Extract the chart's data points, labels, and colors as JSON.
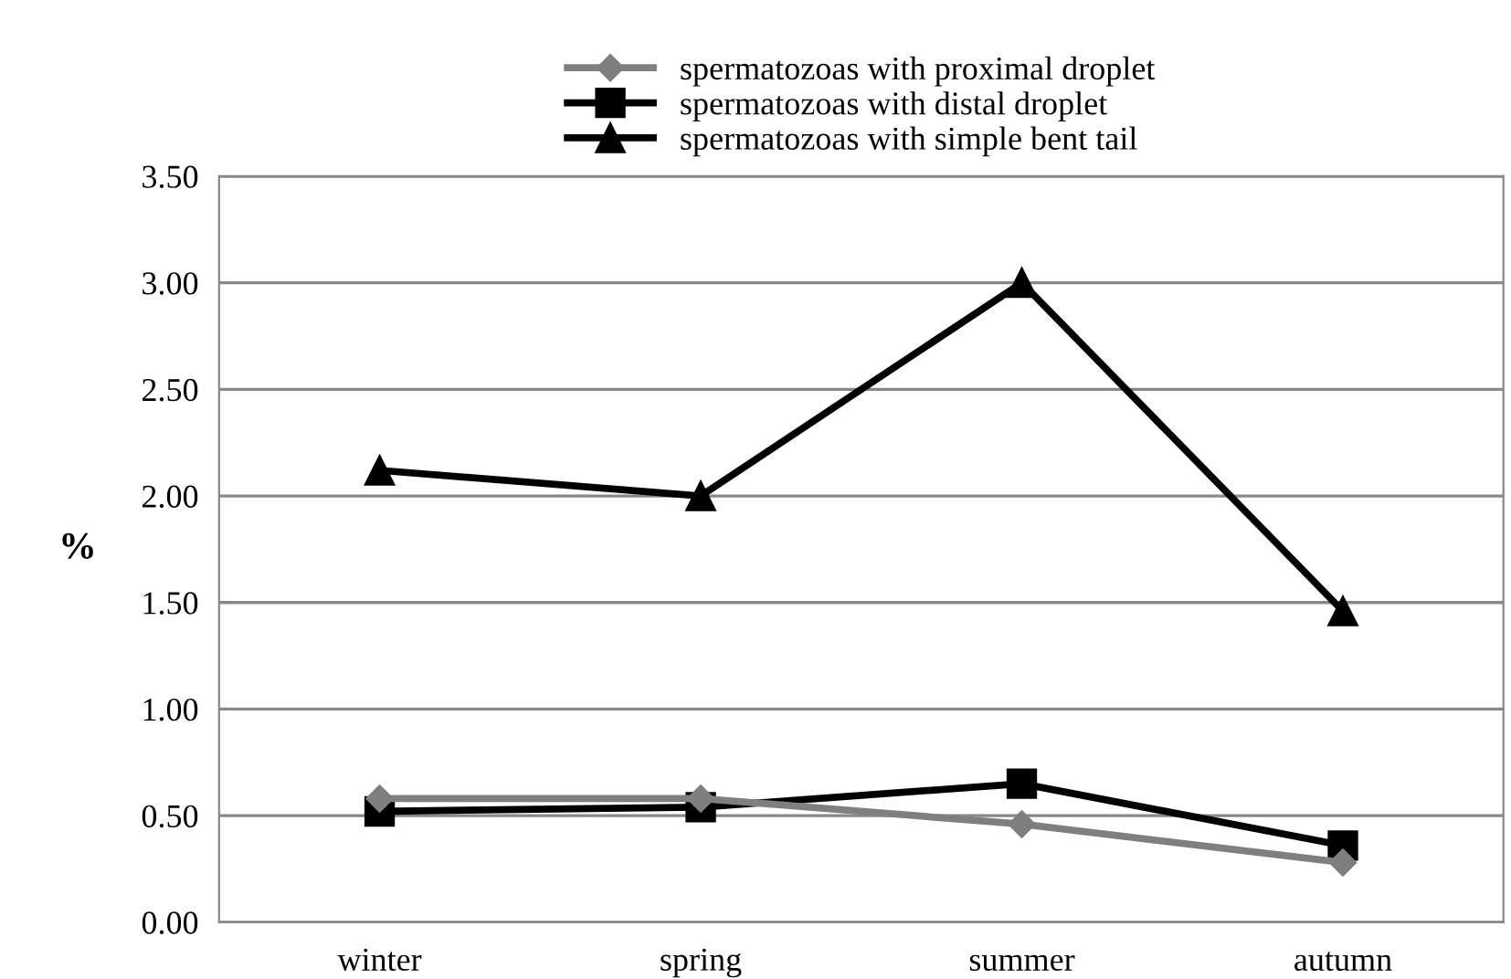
{
  "chart_data": {
    "type": "line",
    "ylabel": "%",
    "categories": [
      "winter",
      "spring",
      "summer",
      "autumn"
    ],
    "series": [
      {
        "name": "spermatozoas with proximal droplet",
        "color": "#7f7f7f",
        "marker": "diamond",
        "values": [
          0.58,
          0.58,
          0.46,
          0.28
        ]
      },
      {
        "name": "spermatozoas with distal droplet",
        "color": "#000000",
        "marker": "square",
        "values": [
          0.52,
          0.54,
          0.65,
          0.36
        ]
      },
      {
        "name": "spermatozoas with simple bent tail",
        "color": "#000000",
        "marker": "triangle",
        "values": [
          2.12,
          2.0,
          3.0,
          1.46
        ]
      }
    ],
    "ylim": [
      0,
      3.5
    ],
    "yticks": [
      {
        "value": 0,
        "label": "0.00"
      },
      {
        "value": 0.5,
        "label": "0.50"
      },
      {
        "value": 1,
        "label": "1.00"
      },
      {
        "value": 1.5,
        "label": "1.50"
      },
      {
        "value": 2,
        "label": "2.00"
      },
      {
        "value": 2.5,
        "label": "2.50"
      },
      {
        "value": 3,
        "label": "3.00"
      },
      {
        "value": 3.5,
        "label": "3.50"
      }
    ],
    "grid": "y",
    "legend": "top"
  }
}
